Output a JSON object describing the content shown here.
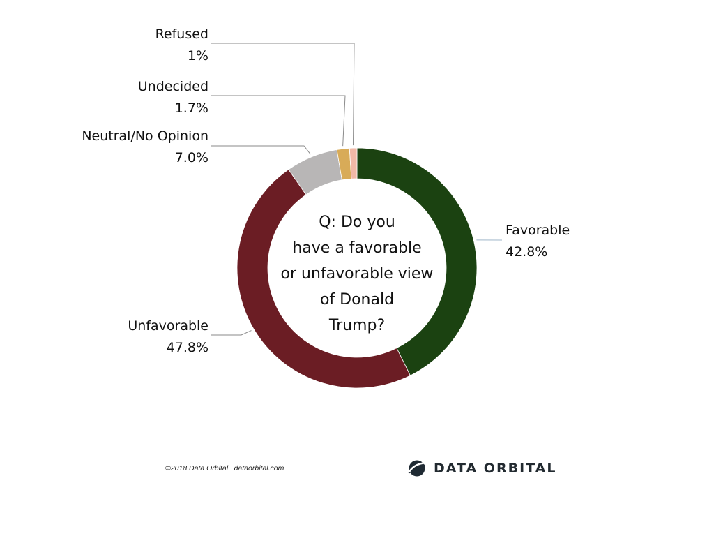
{
  "chart_data": {
    "type": "pie",
    "variant": "donut",
    "title": "Q: Do you have a favorable or unfavorable view of Donald Trump?",
    "title_lines": [
      "Q: Do you",
      "have a favorable",
      "or unfavorable view",
      "of Donald",
      "Trump?"
    ],
    "slices": [
      {
        "label": "Favorable",
        "value": 42.8,
        "display": "42.8%",
        "color": "#1b4211"
      },
      {
        "label": "Unfavorable",
        "value": 47.8,
        "display": "47.8%",
        "color": "#6b1d24"
      },
      {
        "label": "Neutral/No Opinion",
        "value": 7.0,
        "display": "7.0%",
        "color": "#b8b6b6"
      },
      {
        "label": "Undecided",
        "value": 1.7,
        "display": "1.7%",
        "color": "#d8ab58"
      },
      {
        "label": "Refused",
        "value": 1,
        "display": "1%",
        "color": "#f1b8a7"
      }
    ],
    "start": "top",
    "direction": "clockwise"
  },
  "footer": {
    "credit": "©2018 Data Orbital | dataorbital.com",
    "brand": "DATA ORBITAL",
    "logo_icon": "globe-orbit-icon"
  }
}
